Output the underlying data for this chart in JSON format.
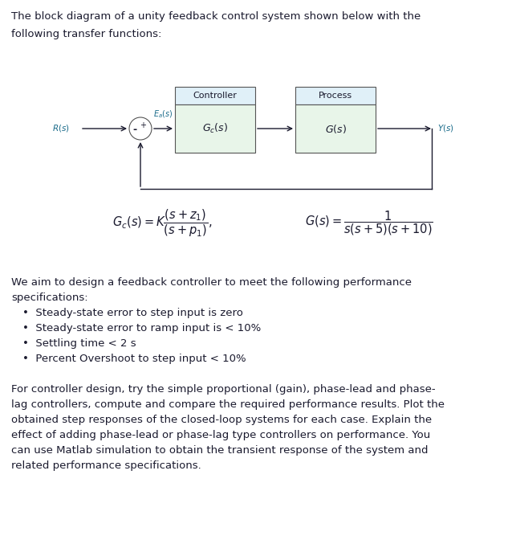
{
  "title_line1": "The block diagram of a unity feedback control system shown below with the",
  "title_line2": "following transfer functions:",
  "controller_label": "Controller",
  "process_label": "Process",
  "gc_label": "$G_c(s)$",
  "g_label": "$G(s)$",
  "r_label": "$R(s)$",
  "y_label": "$Y(s)$",
  "ea_label": "$E_a(s)$",
  "plus_sign": "+",
  "minus_sign": "-",
  "body_lines": [
    "We aim to design a feedback controller to meet the following performance",
    "specifications:",
    "•  Steady-state error to step input is zero",
    "•  Steady-state error to ramp input is < 10%",
    "•  Settling time < 2 s",
    "•  Percent Overshoot to step input < 10%",
    "For controller design, try the simple proportional (gain), phase-lead and phase-",
    "lag controllers, compute and compare the required performance results. Plot the",
    "obtained step responses of the closed-loop systems for each case. Explain the",
    "effect of adding phase-lead or phase-lag type controllers on performance. You",
    "can use Matlab simulation to obtain the transient response of the system and",
    "related performance specifications."
  ],
  "bg_color": "#ffffff",
  "text_color": "#1a1a2e",
  "label_color": "#1a6b8a",
  "box_fill": "#e8f5e9",
  "box_edge": "#555555",
  "label_box_fill": "#e0f0f8"
}
